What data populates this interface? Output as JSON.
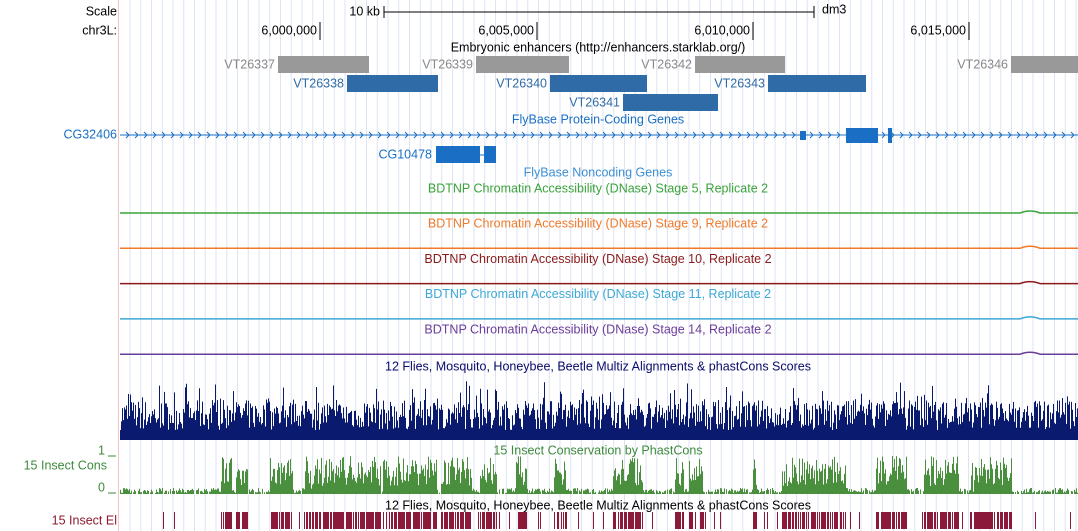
{
  "scale": {
    "label": "Scale",
    "length": "10 kb",
    "assembly": "dm3"
  },
  "position": {
    "chrom": "chr3L:",
    "ticks": [
      "6,000,000",
      "6,005,000",
      "6,010,000",
      "6,015,000"
    ]
  },
  "enhancers": {
    "title": "Embryonic enhancers (http://enhancers.starklab.org/)",
    "items": [
      "VT26337",
      "VT26338",
      "VT26339",
      "VT26340",
      "VT26341",
      "VT26342",
      "VT26343",
      "VT26346"
    ]
  },
  "protein_genes": {
    "title": "FlyBase Protein-Coding Genes",
    "genes": [
      "CG32406",
      "CG10478"
    ]
  },
  "noncoding_genes": {
    "title": "FlyBase Noncoding Genes"
  },
  "dnase": [
    "BDTNP Chromatin Accessibility (DNase) Stage 5, Replicate 2",
    "BDTNP Chromatin Accessibility (DNase) Stage 9, Replicate 2",
    "BDTNP Chromatin Accessibility (DNase) Stage 10, Replicate 2",
    "BDTNP Chromatin Accessibility (DNase) Stage 11, Replicate 2",
    "BDTNP Chromatin Accessibility (DNase) Stage 14, Replicate 2"
  ],
  "multiz": {
    "title": "12 Flies, Mosquito, Honeybee, Beetle Multiz Alignments & phastCons Scores"
  },
  "phastcons": {
    "title": "15 Insect Conservation by PhastCons",
    "label": "15 Insect Cons",
    "max": "1",
    "min": "0"
  },
  "elements": {
    "title": "12 Flies, Mosquito, Honeybee, Beetle Multiz Alignments & phastCons Scores",
    "label": "15 Insect El"
  }
}
